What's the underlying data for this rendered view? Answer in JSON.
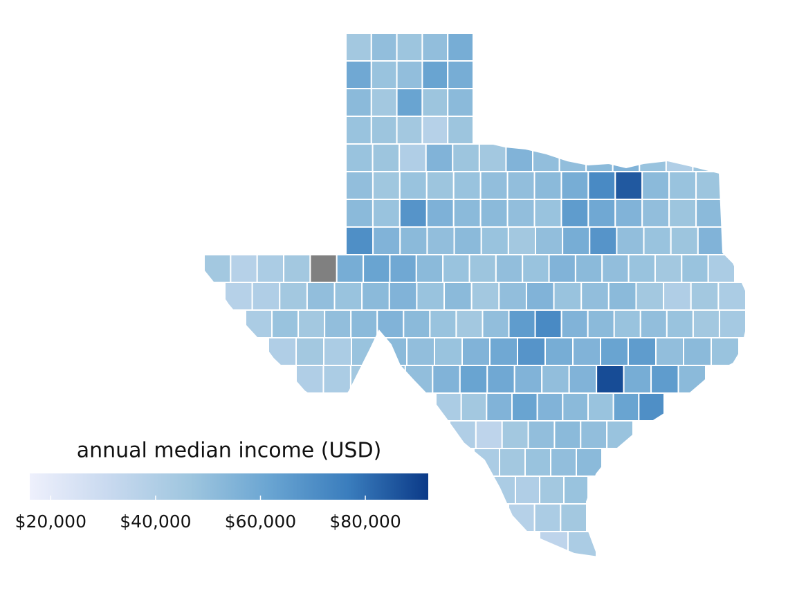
{
  "chart_data": {
    "type": "choropleth",
    "legend_title": "annual median income (USD)",
    "colors": [
      "#eef0fc",
      "#c8d9ef",
      "#9fc6df",
      "#6aa5d2",
      "#3a7dbd",
      "#0b3a88"
    ],
    "na_color": "#808080",
    "legend_lim": [
      16000,
      92000
    ],
    "legend_ticks": [
      {
        "value": 20000,
        "label": "$20,000"
      },
      {
        "value": 40000,
        "label": "$40,000"
      },
      {
        "value": 60000,
        "label": "$60,000"
      },
      {
        "value": 80000,
        "label": "$80,000"
      }
    ],
    "values": [
      45000,
      50000,
      47000,
      50000,
      58000,
      60000,
      48000,
      50000,
      62000,
      58000,
      52000,
      45000,
      62000,
      47000,
      52000,
      48000,
      47000,
      45000,
      38000,
      47000,
      48000,
      47000,
      40000,
      55000,
      47000,
      45000,
      55000,
      50000,
      50000,
      52000,
      55000,
      48000,
      40000,
      47000,
      50000,
      46000,
      48000,
      47000,
      48000,
      50000,
      50000,
      52000,
      58000,
      72000,
      85000,
      52000,
      48000,
      47000,
      52000,
      48000,
      68000,
      56000,
      52000,
      52000,
      50000,
      48000,
      65000,
      60000,
      55000,
      50000,
      47000,
      52000,
      70000,
      55000,
      52000,
      50000,
      52000,
      48000,
      45000,
      50000,
      58000,
      68000,
      50000,
      48000,
      47000,
      55000,
      45000,
      38000,
      42000,
      45000,
      null,
      58000,
      62000,
      60000,
      52000,
      48000,
      47000,
      50000,
      48000,
      55000,
      52000,
      50000,
      48000,
      45000,
      48000,
      42000,
      38000,
      40000,
      45000,
      50000,
      48000,
      52000,
      55000,
      48000,
      52000,
      45000,
      50000,
      55000,
      48000,
      50000,
      52000,
      45000,
      40000,
      45000,
      42000,
      42000,
      48000,
      45000,
      50000,
      52000,
      55000,
      52000,
      48000,
      45000,
      50000,
      65000,
      72000,
      55000,
      52000,
      48000,
      50000,
      48000,
      45000,
      44000,
      40000,
      45000,
      42000,
      48000,
      52000,
      50000,
      48000,
      55000,
      60000,
      68000,
      58000,
      55000,
      62000,
      65000,
      50000,
      52000,
      48000,
      40000,
      42000,
      45000,
      48000,
      50000,
      55000,
      62000,
      60000,
      55000,
      50000,
      55000,
      88000,
      58000,
      65000,
      52000,
      42000,
      45000,
      55000,
      62000,
      55000,
      52000,
      48000,
      62000,
      70000,
      40000,
      35000,
      45000,
      50000,
      52000,
      50000,
      48000,
      42000,
      45000,
      48000,
      50000,
      52000,
      42000,
      40000,
      45000,
      48000,
      38000,
      42000,
      45000,
      35000,
      42000
    ]
  }
}
